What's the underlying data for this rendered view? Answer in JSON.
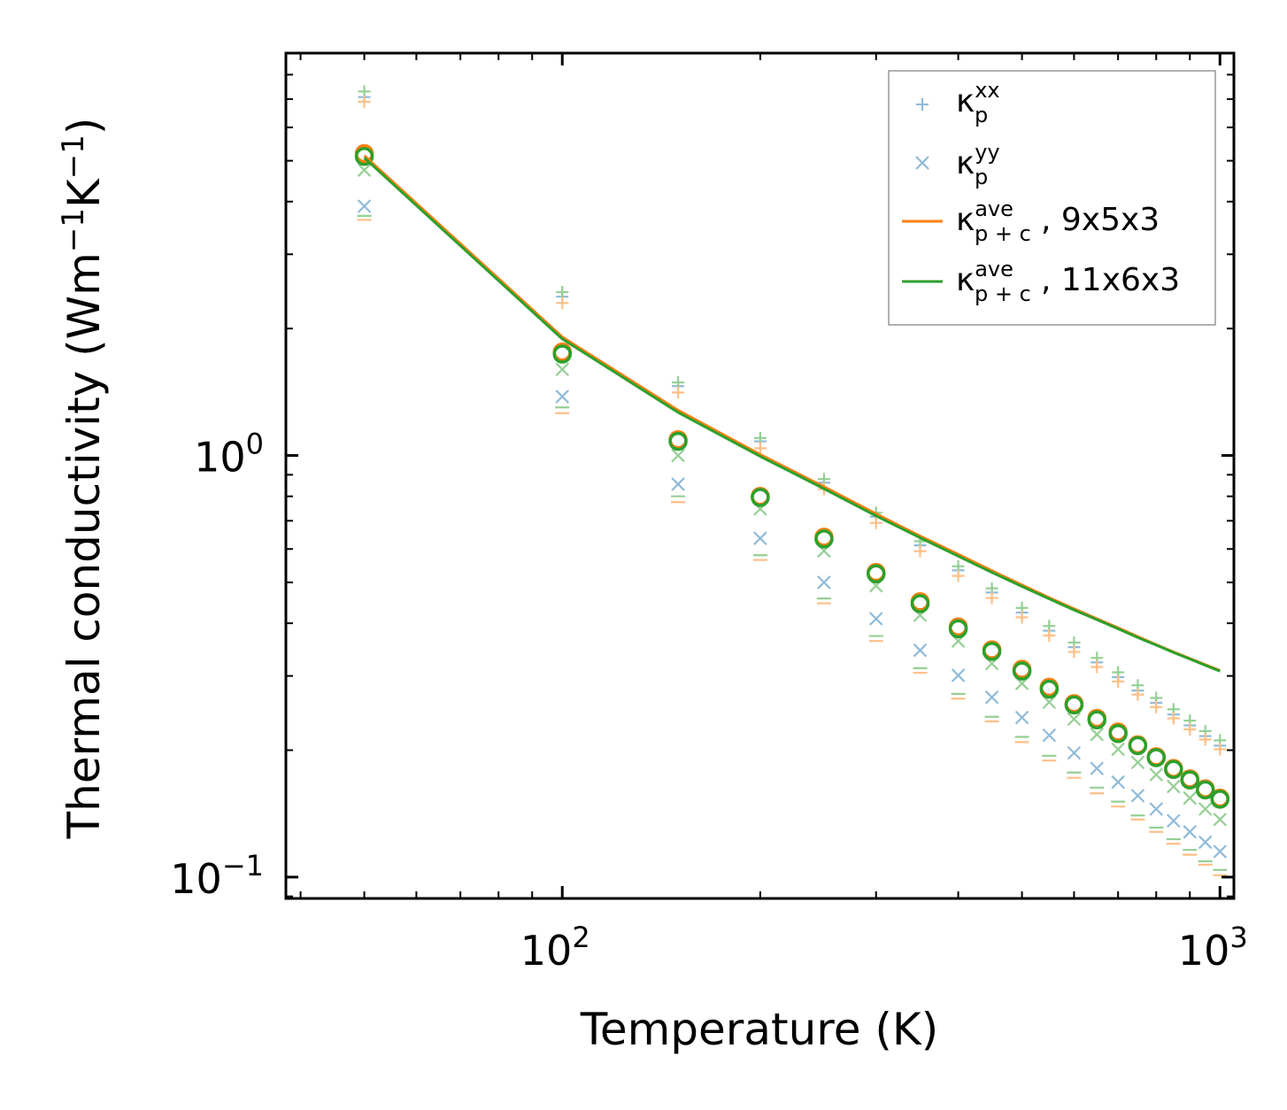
{
  "chart_data": {
    "type": "scatter",
    "title": "",
    "xlabel": "Temperature (K)",
    "ylabel": "Thermal conductivity (Wm",
    "ylabel_unit_parts": [
      "Thermal conductivity (Wm",
      "−1",
      "K",
      "−1",
      ")"
    ],
    "xscale": "log",
    "yscale": "log",
    "xlim": [
      38,
      1050
    ],
    "ylim": [
      0.089,
      9.0
    ],
    "x_ticks": [
      {
        "value": 100,
        "base": "10",
        "exp": "2"
      },
      {
        "value": 1000,
        "base": "10",
        "exp": "3"
      }
    ],
    "y_ticks": [
      {
        "value": 0.1,
        "base": "10",
        "exp": "−1"
      },
      {
        "value": 1.0,
        "base": "10",
        "exp": "0"
      }
    ],
    "x": [
      50,
      100,
      150,
      200,
      250,
      300,
      350,
      400,
      450,
      500,
      550,
      600,
      650,
      700,
      750,
      800,
      850,
      900,
      950,
      1000
    ],
    "colors": {
      "orange": "#ff7f0e",
      "green": "#2ca02c",
      "blue": "#1f77b4",
      "light_orange": "#ffbf87",
      "light_green": "#95cf95",
      "light_blue": "#8fbbd9"
    },
    "series": [
      {
        "name": "kxx_blue",
        "marker": "plus",
        "color": "#8fbbd9",
        "values": [
          7.08,
          2.38,
          1.46,
          1.08,
          0.862,
          0.716,
          0.612,
          0.534,
          0.473,
          0.424,
          0.384,
          0.351,
          0.323,
          0.298,
          0.277,
          0.259,
          0.243,
          0.229,
          0.216,
          0.205
        ]
      },
      {
        "name": "kxx_green",
        "marker": "plus",
        "color": "#95cf95",
        "values": [
          7.3,
          2.44,
          1.49,
          1.1,
          0.879,
          0.731,
          0.626,
          0.546,
          0.484,
          0.435,
          0.394,
          0.36,
          0.331,
          0.306,
          0.285,
          0.266,
          0.25,
          0.235,
          0.222,
          0.211
        ]
      },
      {
        "name": "kxx_orange",
        "marker": "plus",
        "color": "#ffbf87",
        "values": [
          6.9,
          2.3,
          1.41,
          1.04,
          0.832,
          0.692,
          0.593,
          0.518,
          0.459,
          0.413,
          0.374,
          0.342,
          0.315,
          0.291,
          0.271,
          0.253,
          0.238,
          0.224,
          0.212,
          0.201
        ]
      },
      {
        "name": "kyy_blue",
        "marker": "cross",
        "color": "#8fbbd9",
        "values": [
          3.9,
          1.38,
          0.855,
          0.636,
          0.5,
          0.41,
          0.345,
          0.301,
          0.267,
          0.239,
          0.217,
          0.197,
          0.181,
          0.168,
          0.156,
          0.145,
          0.136,
          0.128,
          0.121,
          0.115
        ]
      },
      {
        "name": "kyy_green",
        "marker": "cross",
        "color": "#95cf95",
        "values": [
          4.75,
          1.6,
          1.0,
          0.747,
          0.594,
          0.491,
          0.418,
          0.363,
          0.321,
          0.288,
          0.26,
          0.237,
          0.218,
          0.201,
          0.187,
          0.175,
          0.164,
          0.154,
          0.145,
          0.137
        ]
      },
      {
        "name": "dash_green",
        "marker": "dash",
        "color": "#95cf95",
        "values": [
          3.7,
          1.3,
          0.8,
          0.58,
          0.458,
          0.373,
          0.313,
          0.272,
          0.24,
          0.215,
          0.194,
          0.177,
          0.163,
          0.151,
          0.14,
          0.131,
          0.123,
          0.116,
          0.109,
          0.104
        ]
      },
      {
        "name": "dash_orange",
        "marker": "dash",
        "color": "#ffbf87",
        "values": [
          3.62,
          1.26,
          0.775,
          0.565,
          0.446,
          0.363,
          0.305,
          0.265,
          0.234,
          0.209,
          0.189,
          0.172,
          0.158,
          0.147,
          0.137,
          0.128,
          0.12,
          0.113,
          0.107,
          0.101
        ]
      },
      {
        "name": "ave_orange_marker",
        "marker": "circle",
        "color": "#ff7f0e",
        "values": [
          5.2,
          1.76,
          1.09,
          0.8,
          0.64,
          0.528,
          0.45,
          0.392,
          0.346,
          0.311,
          0.282,
          0.258,
          0.238,
          0.221,
          0.206,
          0.193,
          0.181,
          0.171,
          0.162,
          0.154
        ]
      },
      {
        "name": "ave_green_marker",
        "marker": "circle",
        "color": "#2ca02c",
        "values": [
          5.12,
          1.74,
          1.08,
          0.795,
          0.634,
          0.524,
          0.445,
          0.388,
          0.343,
          0.308,
          0.279,
          0.256,
          0.236,
          0.219,
          0.205,
          0.192,
          0.18,
          0.17,
          0.161,
          0.153
        ]
      },
      {
        "name": "kappa_ave_9x5x3",
        "marker": "line",
        "color": "#ff7f0e",
        "values": [
          5.14,
          1.91,
          1.28,
          1.005,
          0.843,
          0.727,
          0.644,
          0.583,
          0.533,
          0.493,
          0.46,
          0.433,
          0.41,
          0.39,
          0.372,
          0.356,
          0.342,
          0.33,
          0.319,
          0.309
        ]
      },
      {
        "name": "kappa_ave_11x6x3",
        "marker": "line",
        "color": "#2ca02c",
        "values": [
          5.08,
          1.89,
          1.265,
          0.995,
          0.834,
          0.719,
          0.638,
          0.577,
          0.528,
          0.489,
          0.457,
          0.43,
          0.408,
          0.388,
          0.37,
          0.355,
          0.341,
          0.329,
          0.318,
          0.308
        ]
      }
    ],
    "legend": {
      "placement": "top-right",
      "entries": [
        {
          "symbol": "κ",
          "sub": "p",
          "sup": "xx",
          "suffix": "",
          "marker": "plus",
          "color": "#8fbbd9"
        },
        {
          "symbol": "κ",
          "sub": "p",
          "sup": "yy",
          "suffix": "",
          "marker": "cross",
          "color": "#8fbbd9"
        },
        {
          "symbol": "κ",
          "sub": "p + c",
          "sup": "ave",
          "suffix": ", 9x5x3",
          "marker": "line",
          "color": "#ff7f0e"
        },
        {
          "symbol": "κ",
          "sub": "p + c",
          "sup": "ave",
          "suffix": ", 11x6x3",
          "marker": "line",
          "color": "#2ca02c"
        }
      ]
    }
  }
}
